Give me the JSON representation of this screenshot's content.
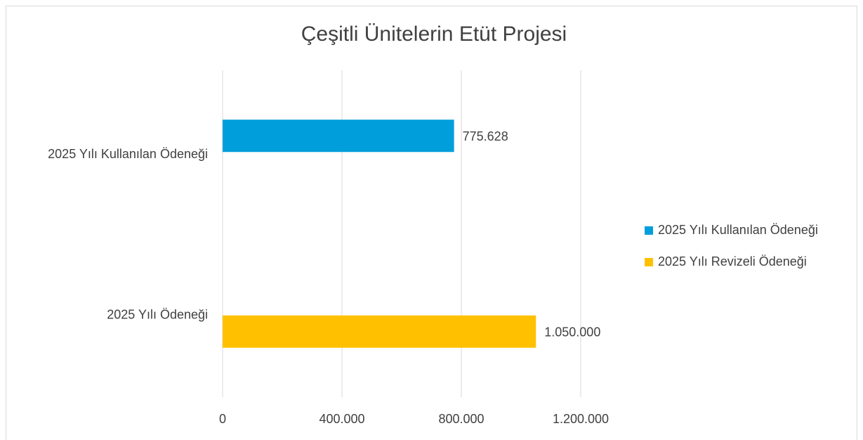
{
  "chart_data": {
    "type": "bar",
    "orientation": "horizontal",
    "title": "Çeşitli Ünitelerin Etüt Projesi",
    "categories": [
      "2025 Yılı Kullanılan Ödeneği",
      "2025 Yılı Ödeneği"
    ],
    "series": [
      {
        "name": "2025 Yılı Kullanılan Ödeneği",
        "color": "#009fdb",
        "values": [
          775628,
          null
        ],
        "value_labels": [
          "775.628",
          null
        ]
      },
      {
        "name": "2025 Yılı Revizeli Ödeneği",
        "color": "#ffc000",
        "values": [
          null,
          1050000
        ],
        "value_labels": [
          null,
          "1.050.000"
        ]
      }
    ],
    "xlim": [
      0,
      1200000
    ],
    "xticks": [
      0,
      {
        "value": 400000,
        "label": "400.000"
      },
      {
        "value": 800000,
        "label": "800.000"
      },
      {
        "value": 1200000,
        "label": "1.200.000"
      }
    ],
    "grid": true,
    "legend": "right"
  }
}
